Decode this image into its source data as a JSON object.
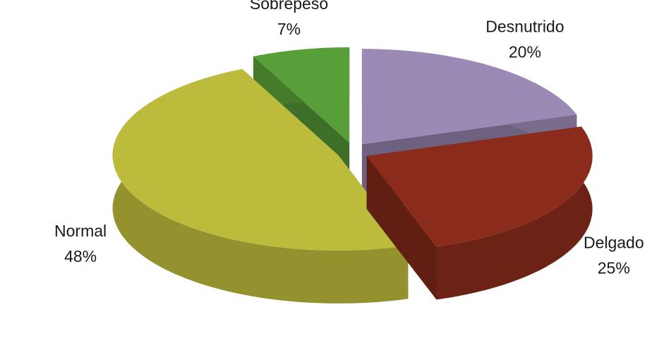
{
  "chart_data": {
    "type": "pie3d",
    "categories": [
      "Desnutrido",
      "Delgado",
      "Normal",
      "Sobrepeso"
    ],
    "values": [
      20,
      25,
      48,
      7
    ],
    "value_labels": [
      "20%",
      "25%",
      "48%",
      "7%"
    ],
    "colors": [
      "#9b8ab5",
      "#8b2b1b",
      "#bdbb3c",
      "#599f39"
    ]
  }
}
